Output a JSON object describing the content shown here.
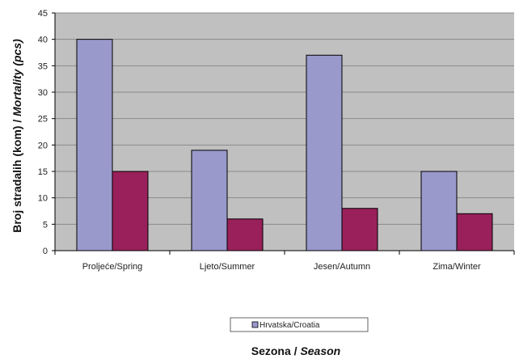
{
  "chart_data": {
    "type": "bar",
    "categories": [
      "Proljeće/Spring",
      "Ljeto/Summer",
      "Jesen/Autumn",
      "Zima/Winter"
    ],
    "series": [
      {
        "name": "Hrvatska/Croatia",
        "values": [
          40,
          19,
          37,
          15
        ],
        "color": "#9999cc"
      },
      {
        "values": [
          15,
          6,
          8,
          7
        ],
        "color": "#99205a"
      }
    ],
    "ylim": [
      0,
      45
    ],
    "yticks": [
      0,
      5,
      10,
      15,
      20,
      25,
      30,
      35,
      40,
      45
    ],
    "ylabel": {
      "regular": "Broj stradalih (kom) / ",
      "italic": "Mortality (pcs)"
    },
    "xlabel": {
      "regular": "Sezona / ",
      "italic": "Season"
    },
    "legend_position": "bottom-center",
    "grid": true,
    "plot_background": "#c0c0c0",
    "gridline_color": "#8a8a8a"
  }
}
